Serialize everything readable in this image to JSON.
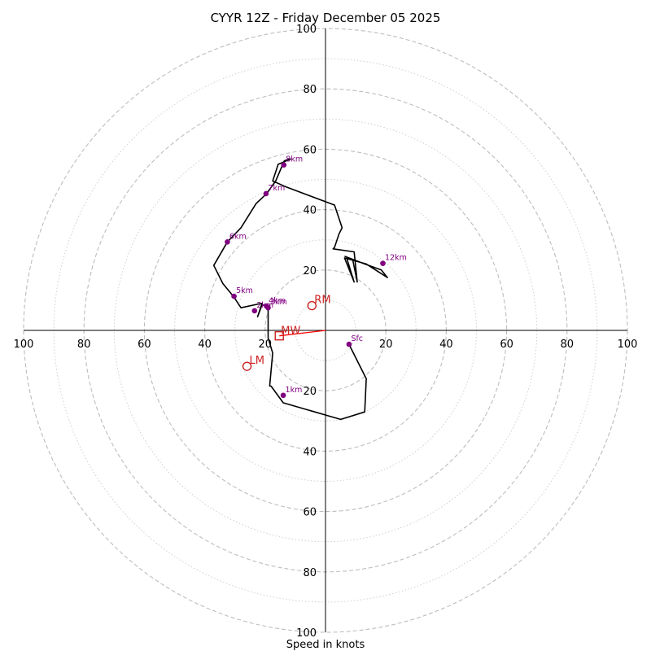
{
  "chart_data": {
    "type": "hodograph",
    "title": "CYYR 12Z - Friday December 05 2025",
    "xlabel": "Speed in knots",
    "ylabel": "",
    "xlim": [
      -100,
      100
    ],
    "ylim": [
      -100,
      100
    ],
    "major_rings": [
      20,
      40,
      60,
      80,
      100
    ],
    "minor_rings": [
      10,
      30,
      50,
      70,
      90
    ],
    "x_ticks": [
      {
        "value": -100,
        "label": "100"
      },
      {
        "value": -80,
        "label": "80"
      },
      {
        "value": -60,
        "label": "60"
      },
      {
        "value": -40,
        "label": "40"
      },
      {
        "value": -20,
        "label": "20"
      },
      {
        "value": 20,
        "label": "20"
      },
      {
        "value": 40,
        "label": "40"
      },
      {
        "value": 60,
        "label": "60"
      },
      {
        "value": 80,
        "label": "80"
      },
      {
        "value": 100,
        "label": "100"
      }
    ],
    "y_ticks": [
      {
        "value": 100,
        "label": "100"
      },
      {
        "value": 80,
        "label": "80"
      },
      {
        "value": 60,
        "label": "60"
      },
      {
        "value": 40,
        "label": "40"
      },
      {
        "value": 20,
        "label": "20"
      },
      {
        "value": -20,
        "label": "20"
      },
      {
        "value": -40,
        "label": "40"
      },
      {
        "value": -60,
        "label": "60"
      },
      {
        "value": -80,
        "label": "80"
      },
      {
        "value": -100,
        "label": "100"
      }
    ],
    "hodograph": {
      "color": "#000000",
      "points": [
        [
          7.8,
          -4.6
        ],
        [
          13.5,
          -16
        ],
        [
          13,
          -27
        ],
        [
          5,
          -29.5
        ],
        [
          -14,
          -24
        ],
        [
          -18,
          -18.5
        ],
        [
          -18.5,
          -18.4
        ],
        [
          -17.5,
          -7.5
        ],
        [
          -19,
          -2.5
        ],
        [
          -19,
          6.5
        ],
        [
          -19.5,
          8
        ],
        [
          -21,
          8.5
        ],
        [
          -22.5,
          4.5
        ],
        [
          -21,
          9
        ],
        [
          -28,
          7.5
        ],
        [
          -30.5,
          11.3
        ],
        [
          -34,
          15.5
        ],
        [
          -37,
          21.5
        ],
        [
          -32.5,
          29.3
        ],
        [
          -28,
          34
        ],
        [
          -23,
          42
        ],
        [
          -19.5,
          45.3
        ],
        [
          -16.5,
          49.5
        ],
        [
          -14,
          55.4
        ],
        [
          -13.6,
          56.2
        ],
        [
          -11.5,
          56.8
        ],
        [
          -14.5,
          55.5
        ],
        [
          -15.7,
          55
        ],
        [
          -16.5,
          52.5
        ],
        [
          -17.5,
          49.5
        ],
        [
          -13,
          47.5
        ],
        [
          3,
          41.5
        ],
        [
          5.5,
          34
        ],
        [
          4.5,
          32
        ],
        [
          3,
          27.5
        ],
        [
          2.5,
          27
        ],
        [
          9.5,
          26
        ],
        [
          10.5,
          16
        ],
        [
          9,
          23.5
        ],
        [
          6.5,
          24.5
        ],
        [
          13,
          22
        ],
        [
          18.5,
          20
        ],
        [
          20.5,
          17.5
        ],
        [
          13.5,
          22
        ],
        [
          6.3,
          24
        ],
        [
          9.5,
          16
        ],
        [
          7,
          24
        ]
      ]
    },
    "height_markers": [
      {
        "label": "Sfc",
        "u": 7.8,
        "v": -4.6
      },
      {
        "label": "1km",
        "u": -14,
        "v": -21.5
      },
      {
        "label": "2km",
        "u": -23.5,
        "v": 6.5
      },
      {
        "label": "3km",
        "u": -19,
        "v": 7.5
      },
      {
        "label": "4km",
        "u": -19.5,
        "v": 8
      },
      {
        "label": "5km",
        "u": -30.3,
        "v": 11.3
      },
      {
        "label": "6km",
        "u": -32.5,
        "v": 29.3
      },
      {
        "label": "7km",
        "u": -19.7,
        "v": 45.3
      },
      {
        "label": "8km",
        "u": -13.8,
        "v": 54.8
      },
      {
        "label": "12km",
        "u": 19,
        "v": 22.2
      }
    ],
    "storm_motion": [
      {
        "label": "RM",
        "u": -4.5,
        "v": 8.2,
        "marker": "circle"
      },
      {
        "label": "LM",
        "u": -26,
        "v": -11.9,
        "marker": "circle"
      },
      {
        "label": "MW",
        "u": -15.3,
        "v": -1.8,
        "marker": "square"
      }
    ],
    "shear_vector": {
      "from_u": -15.3,
      "from_v": -1.8,
      "to_u": 0,
      "to_v": 0,
      "color": "#ff0000"
    }
  }
}
